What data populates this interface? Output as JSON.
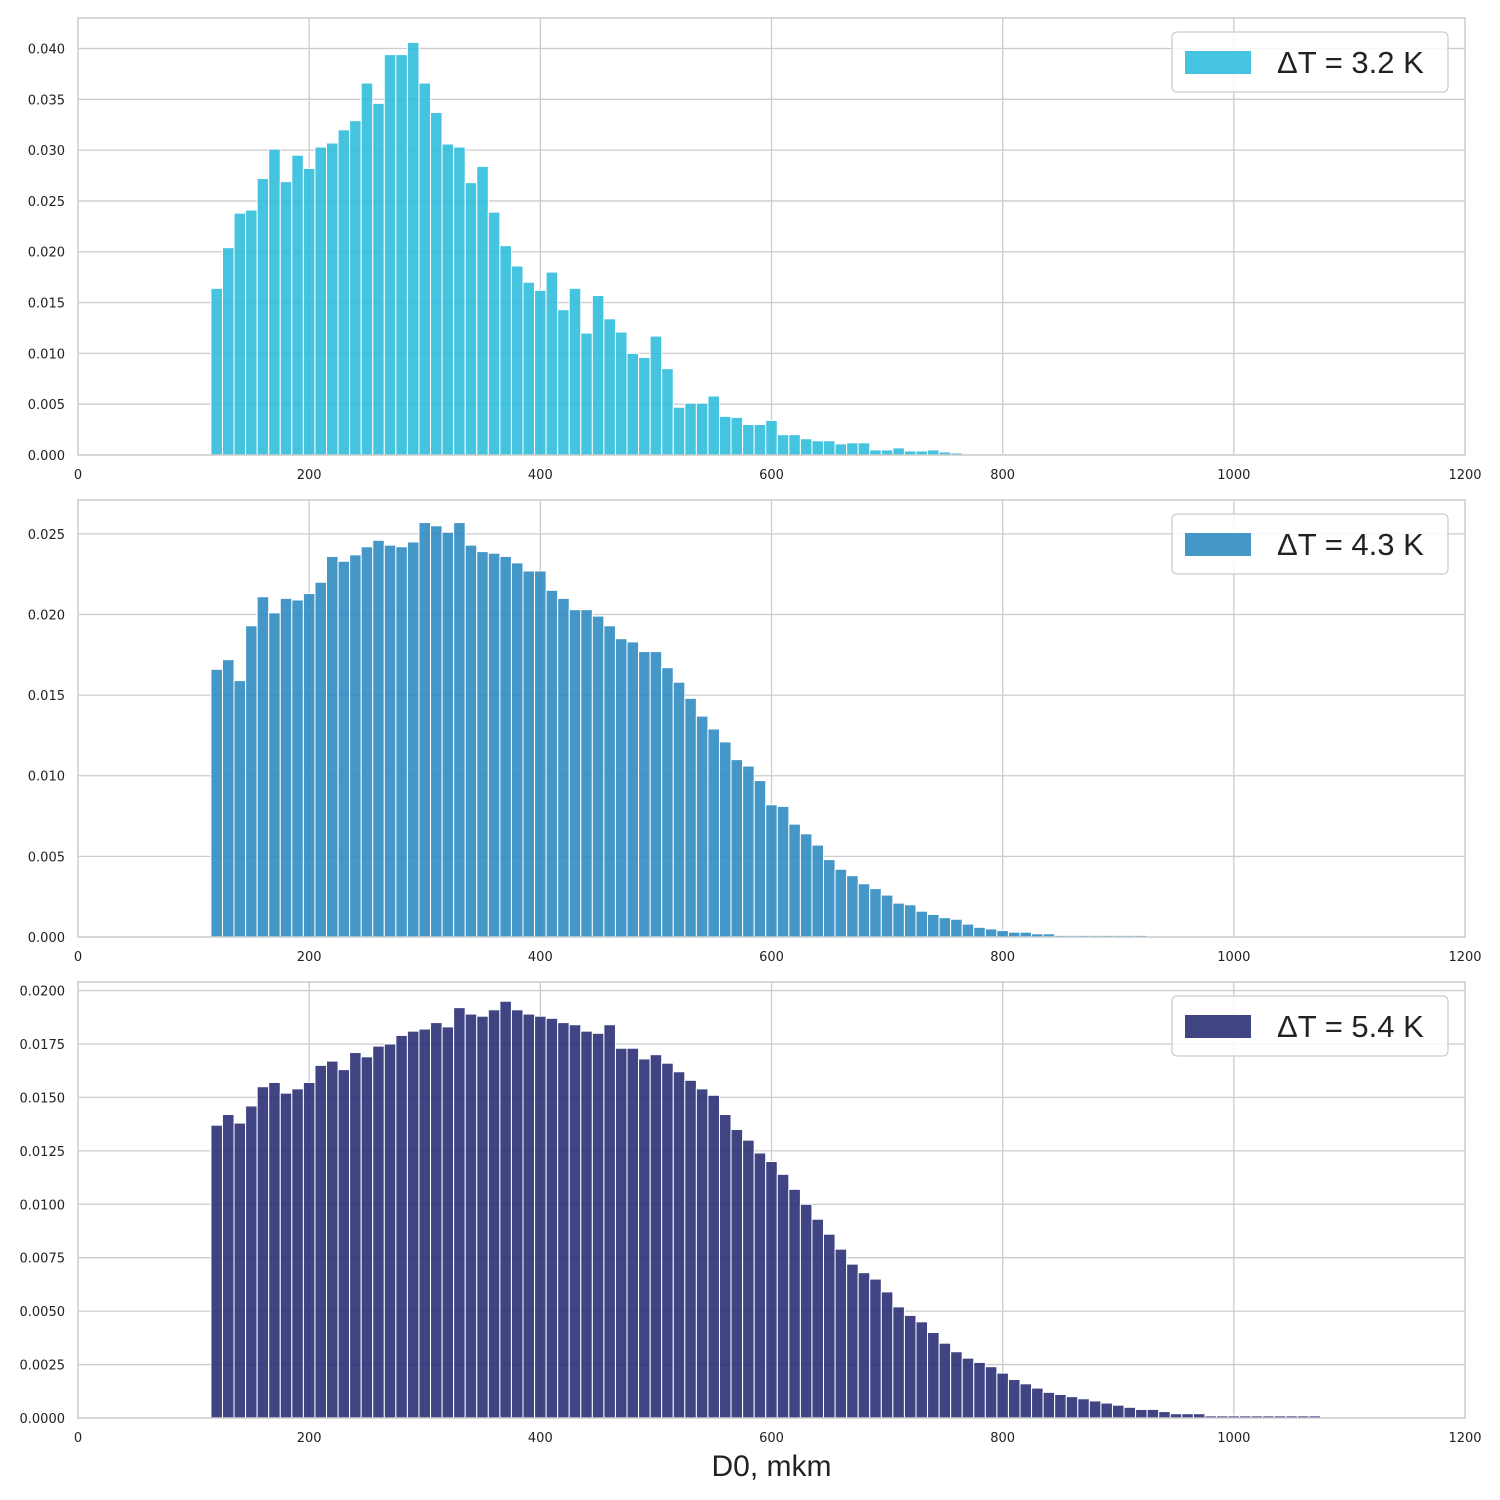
{
  "chart_data": [
    {
      "type": "bar",
      "legend": "ΔT = 3.2 K",
      "legend_position": "top-right",
      "color": "#2bbcdc",
      "grid": true,
      "xlim": [
        0,
        1200
      ],
      "ylim": [
        0,
        0.043
      ],
      "xticks": [
        0,
        200,
        400,
        600,
        800,
        1000,
        1200
      ],
      "xtick_labels": [
        "0",
        "200",
        "400",
        "600",
        "800",
        "1000",
        "1200"
      ],
      "yticks": [
        0,
        0.005,
        0.01,
        0.015,
        0.02,
        0.025,
        0.03,
        0.035,
        0.04
      ],
      "ytick_labels": [
        "0.000",
        "0.005",
        "0.010",
        "0.015",
        "0.020",
        "0.025",
        "0.030",
        "0.035",
        "0.040"
      ],
      "xlabel": "",
      "bin_start": 115,
      "bin_width": 10,
      "values": [
        0.0164,
        0.0204,
        0.0238,
        0.0241,
        0.0272,
        0.0301,
        0.0269,
        0.0295,
        0.0282,
        0.0303,
        0.0307,
        0.032,
        0.0329,
        0.0366,
        0.0346,
        0.0394,
        0.0394,
        0.0406,
        0.0366,
        0.0337,
        0.0306,
        0.0303,
        0.0268,
        0.0284,
        0.0239,
        0.0206,
        0.0186,
        0.017,
        0.0162,
        0.018,
        0.0143,
        0.0164,
        0.012,
        0.0157,
        0.0134,
        0.0121,
        0.01,
        0.0096,
        0.0117,
        0.0085,
        0.0047,
        0.0051,
        0.0051,
        0.0058,
        0.0038,
        0.0037,
        0.003,
        0.003,
        0.0034,
        0.002,
        0.002,
        0.0016,
        0.0014,
        0.0014,
        0.0011,
        0.0012,
        0.0012,
        0.0005,
        0.0005,
        0.0007,
        0.0004,
        0.0004,
        0.0005,
        0.0003,
        0.0002,
        0.0001,
        0.0001,
        0.0001,
        0.0001,
        0.0001,
        0.0001,
        0.0001,
        0.0001,
        0.0001,
        0.0001,
        0.0001,
        0.0001,
        0.0001,
        0.0001,
        0.0001,
        0.0001
      ]
    },
    {
      "type": "bar",
      "legend": "ΔT = 4.3 K",
      "legend_position": "top-right",
      "color": "#2b89c0",
      "grid": true,
      "xlim": [
        0,
        1200
      ],
      "ylim": [
        0,
        0.0271
      ],
      "xticks": [
        0,
        200,
        400,
        600,
        800,
        1000,
        1200
      ],
      "xtick_labels": [
        "0",
        "200",
        "400",
        "600",
        "800",
        "1000",
        "1200"
      ],
      "yticks": [
        0,
        0.005,
        0.01,
        0.015,
        0.02,
        0.025
      ],
      "ytick_labels": [
        "0.000",
        "0.005",
        "0.010",
        "0.015",
        "0.020",
        "0.025"
      ],
      "xlabel": "",
      "bin_start": 115,
      "bin_width": 10,
      "values": [
        0.0166,
        0.0172,
        0.0159,
        0.0193,
        0.0211,
        0.0201,
        0.021,
        0.0209,
        0.0213,
        0.022,
        0.0236,
        0.0233,
        0.0237,
        0.0242,
        0.0246,
        0.0243,
        0.0242,
        0.0245,
        0.0257,
        0.0255,
        0.0251,
        0.0257,
        0.0243,
        0.0239,
        0.0238,
        0.0236,
        0.0232,
        0.0227,
        0.0227,
        0.0215,
        0.021,
        0.0203,
        0.0203,
        0.0199,
        0.0193,
        0.0185,
        0.0183,
        0.0177,
        0.0177,
        0.0167,
        0.0158,
        0.0148,
        0.0137,
        0.0129,
        0.0121,
        0.011,
        0.0106,
        0.0097,
        0.0082,
        0.0081,
        0.007,
        0.0064,
        0.0057,
        0.0048,
        0.0042,
        0.0038,
        0.0033,
        0.003,
        0.0026,
        0.0021,
        0.002,
        0.0016,
        0.0014,
        0.0012,
        0.0011,
        0.0008,
        0.0006,
        0.0005,
        0.0004,
        0.0003,
        0.0003,
        0.0002,
        0.0002,
        0.0001,
        0.0001,
        0.0001,
        0.0001,
        0.0001,
        0.0001,
        0.0001,
        0.0001
      ]
    },
    {
      "type": "bar",
      "legend": "ΔT = 5.4 K",
      "legend_position": "top-right",
      "color": "#262a72",
      "grid": true,
      "xlim": [
        0,
        1200
      ],
      "ylim": [
        0,
        0.0204
      ],
      "xticks": [
        0,
        200,
        400,
        600,
        800,
        1000,
        1200
      ],
      "xtick_labels": [
        "0",
        "200",
        "400",
        "600",
        "800",
        "1000",
        "1200"
      ],
      "yticks": [
        0,
        0.0025,
        0.005,
        0.0075,
        0.01,
        0.0125,
        0.015,
        0.0175,
        0.02
      ],
      "ytick_labels": [
        "0.0000",
        "0.0025",
        "0.0050",
        "0.0075",
        "0.0100",
        "0.0125",
        "0.0150",
        "0.0175",
        "0.0200"
      ],
      "xlabel": "D0, mkm",
      "bin_start": 115,
      "bin_width": 10,
      "values": [
        0.0137,
        0.0142,
        0.0138,
        0.0146,
        0.0155,
        0.0157,
        0.0152,
        0.0154,
        0.0157,
        0.0165,
        0.0167,
        0.0163,
        0.0171,
        0.0169,
        0.0174,
        0.0175,
        0.0179,
        0.0181,
        0.0182,
        0.0185,
        0.0183,
        0.0192,
        0.0189,
        0.0188,
        0.0191,
        0.0195,
        0.0191,
        0.0189,
        0.0188,
        0.0187,
        0.0185,
        0.0184,
        0.0181,
        0.018,
        0.0184,
        0.0173,
        0.0173,
        0.0168,
        0.017,
        0.0166,
        0.0162,
        0.0158,
        0.0154,
        0.0151,
        0.0142,
        0.0135,
        0.013,
        0.0124,
        0.012,
        0.0114,
        0.0107,
        0.01,
        0.0093,
        0.0086,
        0.0079,
        0.0072,
        0.0068,
        0.0065,
        0.0059,
        0.0052,
        0.0048,
        0.0045,
        0.004,
        0.0035,
        0.0031,
        0.0028,
        0.0026,
        0.0024,
        0.0021,
        0.0018,
        0.0016,
        0.0014,
        0.0012,
        0.0011,
        0.001,
        0.0009,
        0.0008,
        0.0007,
        0.0006,
        0.0005,
        0.0004,
        0.0004,
        0.0003,
        0.0002,
        0.0002,
        0.0002,
        0.0001,
        0.0001,
        0.0001,
        0.0001,
        0.0001,
        0.0001,
        0.0001,
        0.0001,
        0.0001,
        0.0001
      ]
    }
  ]
}
